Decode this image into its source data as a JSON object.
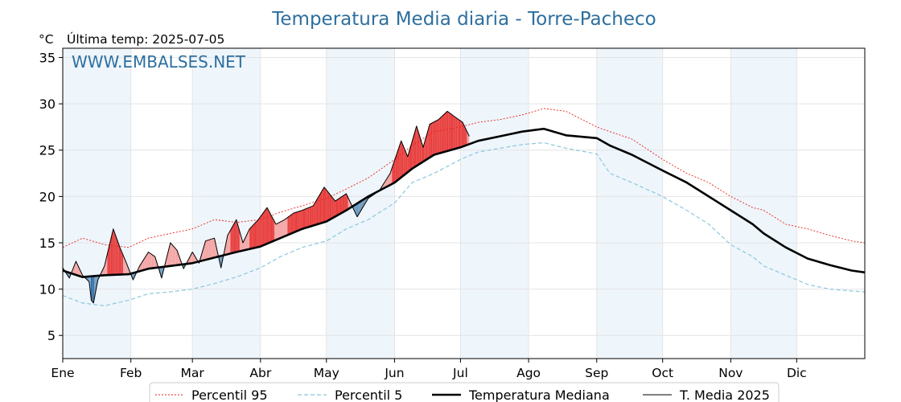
{
  "chart_data": {
    "type": "line",
    "title": "Temperatura Media diaria - Torre-Pacheco",
    "unit": "°C",
    "last_temp_label": "Última temp: 2025-07-05",
    "watermark": "WWW.EMBALSES.NET",
    "ylim": [
      2.5,
      36
    ],
    "yticks": [
      5,
      10,
      15,
      20,
      25,
      30,
      35
    ],
    "xlim": [
      1,
      366
    ],
    "months": [
      {
        "label": "Ene",
        "start": 1
      },
      {
        "label": "Feb",
        "start": 32
      },
      {
        "label": "Mar",
        "start": 60
      },
      {
        "label": "Abr",
        "start": 91
      },
      {
        "label": "May",
        "start": 121
      },
      {
        "label": "Jun",
        "start": 152
      },
      {
        "label": "Jul",
        "start": 182
      },
      {
        "label": "Ago",
        "start": 213
      },
      {
        "label": "Sep",
        "start": 244
      },
      {
        "label": "Oct",
        "start": 274
      },
      {
        "label": "Nov",
        "start": 305
      },
      {
        "label": "Dic",
        "start": 335
      }
    ],
    "grid": true,
    "legend_position": "bottom",
    "colors": {
      "p95": "#e8231a",
      "p5": "#8cc8dc",
      "median": "#000000",
      "t2025": "#000000",
      "above_light": "#f4a6a6",
      "above_strong": "#e84040",
      "below_light": "#6f9dc0",
      "below_strong": "#1f5f9f",
      "band": "#eef5fb",
      "title": "#2e6f9e"
    },
    "series": [
      {
        "name": "Percentil 95",
        "key": "p95",
        "x": [
          1,
          10,
          20,
          31,
          40,
          50,
          60,
          70,
          80,
          91,
          100,
          110,
          121,
          130,
          140,
          152,
          160,
          170,
          182,
          190,
          200,
          210,
          220,
          230,
          244,
          250,
          260,
          274,
          285,
          295,
          305,
          315,
          320,
          330,
          340,
          350,
          360,
          366
        ],
        "y": [
          14.5,
          15.5,
          14.8,
          14.5,
          15.5,
          16,
          16.5,
          17.5,
          17.2,
          17.5,
          18.3,
          19,
          19.8,
          20.8,
          22,
          24,
          25.5,
          27,
          27.5,
          28,
          28.3,
          28.8,
          29.5,
          29.2,
          27.5,
          27,
          26.2,
          24,
          22.5,
          21.5,
          20,
          18.8,
          18.5,
          17,
          16.5,
          15.8,
          15.2,
          15
        ]
      },
      {
        "name": "Percentil 5",
        "key": "p5",
        "x": [
          1,
          10,
          20,
          31,
          40,
          50,
          60,
          70,
          80,
          91,
          100,
          110,
          121,
          130,
          140,
          152,
          160,
          170,
          182,
          190,
          200,
          210,
          220,
          230,
          244,
          250,
          260,
          274,
          285,
          295,
          305,
          315,
          320,
          330,
          340,
          350,
          360,
          366
        ],
        "y": [
          9.3,
          8.5,
          8.2,
          8.8,
          9.5,
          9.7,
          10,
          10.6,
          11.3,
          12.3,
          13.5,
          14.5,
          15.2,
          16.5,
          17.5,
          19.3,
          21.5,
          22.5,
          24,
          24.8,
          25.2,
          25.6,
          25.8,
          25.2,
          24.6,
          22.5,
          21.5,
          20,
          18.5,
          17,
          14.8,
          13.5,
          12.5,
          11.5,
          10.5,
          10,
          9.8,
          9.7
        ]
      },
      {
        "name": "Temperatura Mediana",
        "key": "median",
        "x": [
          1,
          10,
          20,
          31,
          40,
          50,
          60,
          70,
          80,
          91,
          100,
          110,
          121,
          130,
          140,
          152,
          160,
          170,
          182,
          190,
          200,
          210,
          220,
          230,
          244,
          250,
          260,
          274,
          285,
          295,
          305,
          315,
          320,
          330,
          340,
          350,
          360,
          366
        ],
        "y": [
          12,
          11.3,
          11.5,
          11.6,
          12.2,
          12.5,
          12.8,
          13.4,
          14,
          14.6,
          15.5,
          16.5,
          17.3,
          18.5,
          20,
          21.5,
          23,
          24.5,
          25.3,
          26,
          26.5,
          27,
          27.3,
          26.6,
          26.3,
          25.5,
          24.5,
          22.8,
          21.5,
          20,
          18.5,
          17,
          16,
          14.5,
          13.3,
          12.6,
          12,
          11.8
        ]
      },
      {
        "name": "T. Media 2025",
        "key": "t2025",
        "x": [
          1,
          4,
          7,
          10,
          13,
          14,
          15,
          17,
          20,
          24,
          27,
          30,
          33,
          36,
          40,
          43,
          46,
          50,
          53,
          56,
          60,
          63,
          66,
          70,
          73,
          76,
          80,
          83,
          86,
          90,
          94,
          98,
          102,
          106,
          110,
          115,
          120,
          125,
          130,
          135,
          140,
          145,
          150,
          155,
          158,
          162,
          165,
          168,
          172,
          176,
          180,
          183,
          186
        ],
        "y": [
          12.3,
          11.2,
          13,
          11.5,
          10.8,
          8.8,
          8.5,
          11,
          12.5,
          16.5,
          14.5,
          12.8,
          11,
          12.5,
          14,
          13.5,
          11.2,
          15,
          14.2,
          12.2,
          14,
          12.8,
          15.2,
          15.5,
          12.3,
          15.8,
          17.5,
          15,
          16.5,
          17.5,
          18.8,
          17,
          17.5,
          18.2,
          18.5,
          19,
          21,
          19.5,
          20.3,
          17.8,
          19.8,
          20.6,
          22.5,
          26,
          24.3,
          27.6,
          25.3,
          27.8,
          28.3,
          29.2,
          28.5,
          28,
          26.5
        ]
      }
    ]
  }
}
